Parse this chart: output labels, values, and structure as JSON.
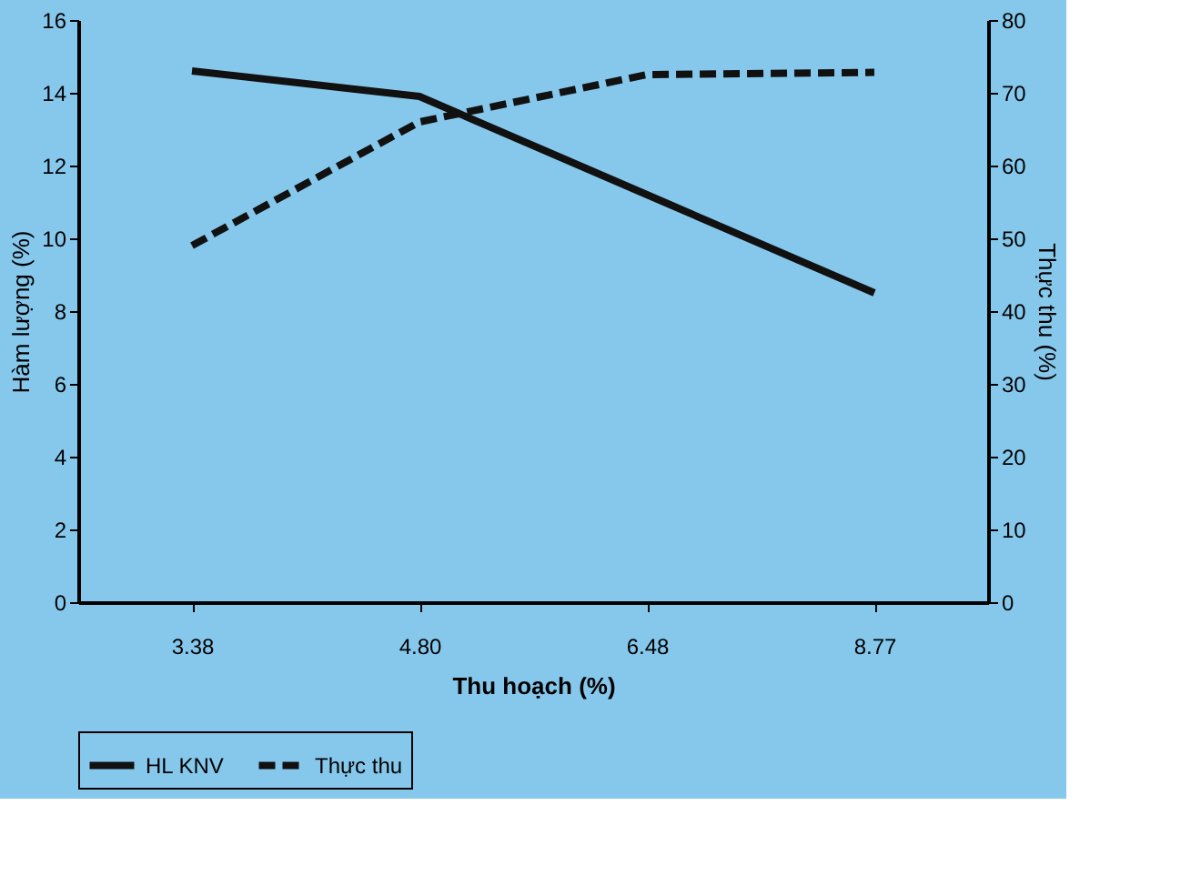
{
  "chart_data": {
    "type": "line",
    "categories": [
      "3.38",
      "4.80",
      "6.48",
      "8.77"
    ],
    "xlabel": "Thu hoạch (%)",
    "ylabel": "Hàm lượng (%)",
    "y2label": "Thực thu (%)",
    "series": [
      {
        "name": "HL KNV",
        "color": "#111111",
        "line_style": "solid",
        "values": [
          14.6,
          13.9,
          11.2,
          8.5
        ]
      },
      {
        "name": "Thực thu",
        "color": "#111111",
        "line_style": "dashed",
        "axis": "y2",
        "values": [
          49,
          66,
          72.5,
          72.8
        ]
      }
    ],
    "ylim": [
      0,
      16
    ],
    "yticks": [
      0,
      2,
      4,
      6,
      8,
      10,
      12,
      14,
      16
    ],
    "y2lim": [
      0,
      80
    ],
    "y2ticks": [
      0,
      10,
      20,
      30,
      40,
      50,
      60,
      70,
      80
    ],
    "legend": "bottom",
    "grid": false,
    "marker": "none"
  }
}
